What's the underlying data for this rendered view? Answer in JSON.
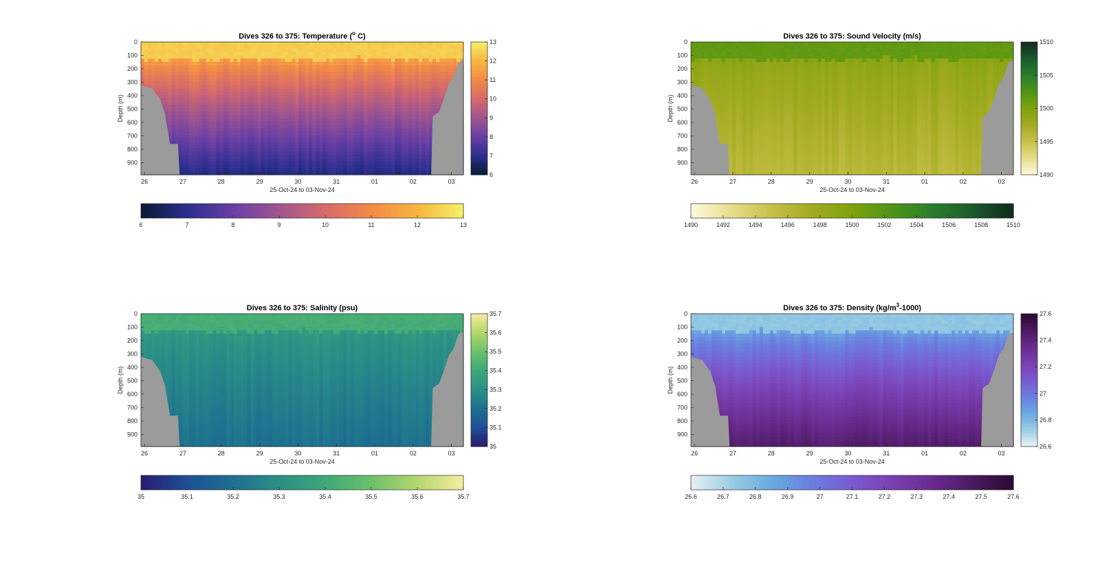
{
  "chart_data": [
    {
      "type": "heatmap",
      "title": "Dives 326 to 375: Temperature (° C)",
      "title_parts": [
        "Dives 326 to 375: Temperature (",
        "o",
        " C)"
      ],
      "xlabel": "25-Oct-24 to 03-Nov-24",
      "ylabel": "Depth (m)",
      "x_tick_labels": [
        "26",
        "27",
        "28",
        "29",
        "30",
        "31",
        "01",
        "02",
        "03"
      ],
      "y_tick_labels": [
        "0",
        "100",
        "200",
        "300",
        "400",
        "500",
        "600",
        "700",
        "800",
        "900"
      ],
      "ylim": [
        0,
        990
      ],
      "clim": [
        6,
        13
      ],
      "colorbar_ticks": [
        "6",
        "7",
        "8",
        "9",
        "10",
        "11",
        "12",
        "13"
      ],
      "colormap": [
        "#0b1a33",
        "#2b2f8f",
        "#6a3fa4",
        "#a0558f",
        "#d66a6a",
        "#f38a47",
        "#f7b640",
        "#f5f06a"
      ],
      "surface_value": 12.4,
      "mixed_layer_depth_m": 130,
      "bottom_value": 6.8,
      "land_color": "#9b9b9b"
    },
    {
      "type": "heatmap",
      "title": "Dives 326 to 375: Sound Velocity (m/s)",
      "title_parts": [
        "Dives 326 to 375: Sound Velocity (m/s)",
        "",
        ""
      ],
      "xlabel": "25-Oct-24 to 03-Nov-24",
      "ylabel": "Depth (m)",
      "x_tick_labels": [
        "26",
        "27",
        "28",
        "29",
        "30",
        "31",
        "01",
        "02",
        "03"
      ],
      "y_tick_labels": [
        "0",
        "100",
        "200",
        "300",
        "400",
        "500",
        "600",
        "700",
        "800",
        "900"
      ],
      "ylim": [
        0,
        990
      ],
      "clim": [
        1490,
        1510
      ],
      "colorbar_ticks": [
        "1490",
        "1492",
        "1494",
        "1496",
        "1498",
        "1500",
        "1502",
        "1504",
        "1506",
        "1508",
        "1510"
      ],
      "colorbar_vertical_ticks": [
        "1490",
        "1495",
        "1500",
        "1505",
        "1510"
      ],
      "colormap": [
        "#fdfae0",
        "#e7dd8a",
        "#c8c04a",
        "#a3ab22",
        "#7ea20c",
        "#4f9417",
        "#2a7d2c",
        "#1a5a2c",
        "#122a1c"
      ],
      "surface_value": 1501.5,
      "mixed_layer_depth_m": 130,
      "bottom_value": 1496,
      "land_color": "#9b9b9b"
    },
    {
      "type": "heatmap",
      "title": "Dives 326 to 375: Salinity (psu)",
      "title_parts": [
        "Dives 326 to 375: Salinity (psu)",
        "",
        ""
      ],
      "xlabel": "25-Oct-24 to 03-Nov-24",
      "ylabel": "Depth (m)",
      "x_tick_labels": [
        "26",
        "27",
        "28",
        "29",
        "30",
        "31",
        "01",
        "02",
        "03"
      ],
      "y_tick_labels": [
        "0",
        "100",
        "200",
        "300",
        "400",
        "500",
        "600",
        "700",
        "800",
        "900"
      ],
      "ylim": [
        0,
        990
      ],
      "clim": [
        35,
        35.7
      ],
      "colorbar_ticks": [
        "35",
        "35.1",
        "35.2",
        "35.3",
        "35.4",
        "35.5",
        "35.6",
        "35.7"
      ],
      "colormap": [
        "#2a1b6e",
        "#1f4f96",
        "#1e7090",
        "#2b8f86",
        "#3ea77a",
        "#6dc16a",
        "#b5d66d",
        "#f5eca0"
      ],
      "surface_value": 35.42,
      "mixed_layer_depth_m": 130,
      "bottom_value": 35.2,
      "land_color": "#9b9b9b"
    },
    {
      "type": "heatmap",
      "title": "Dives 326 to 375: Density (kg/m³-1000)",
      "title_parts": [
        "Dives 326 to 375: Density (kg/m",
        "3",
        "-1000)"
      ],
      "xlabel": "25-Oct-24 to 03-Nov-24",
      "ylabel": "Depth (m)",
      "x_tick_labels": [
        "26",
        "27",
        "28",
        "29",
        "30",
        "31",
        "01",
        "02",
        "03"
      ],
      "y_tick_labels": [
        "0",
        "100",
        "200",
        "300",
        "400",
        "500",
        "600",
        "700",
        "800",
        "900"
      ],
      "ylim": [
        0,
        990
      ],
      "clim": [
        26.6,
        27.6
      ],
      "colorbar_ticks": [
        "26.6",
        "26.7",
        "26.8",
        "26.9",
        "27",
        "27.1",
        "27.2",
        "27.3",
        "27.4",
        "27.5",
        "27.6"
      ],
      "colorbar_vertical_ticks": [
        "26.6",
        "26.8",
        "27",
        "27.2",
        "27.4",
        "27.6"
      ],
      "colormap": [
        "#e8f2f3",
        "#9ccde3",
        "#6aa9e0",
        "#6a7ee0",
        "#7a5bd0",
        "#7a3fb0",
        "#6a2a8f",
        "#4a1a60",
        "#2a0a30"
      ],
      "surface_value": 26.75,
      "mixed_layer_depth_m": 130,
      "bottom_value": 27.45,
      "land_color": "#9b9b9b"
    }
  ]
}
